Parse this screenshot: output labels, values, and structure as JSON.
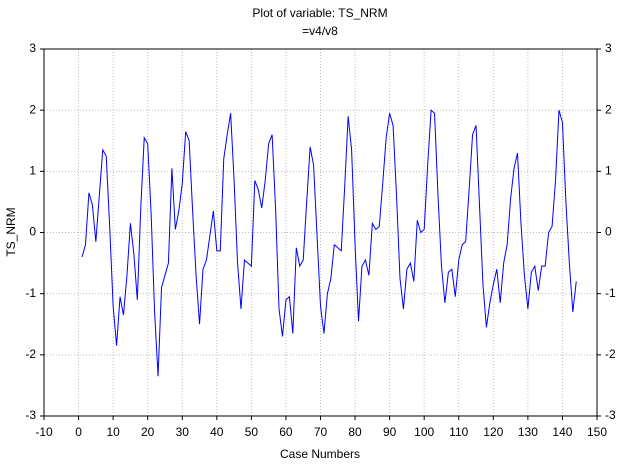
{
  "chart_data": {
    "type": "line",
    "title": "Plot of variable: TS_NRM",
    "subtitle": "=v4/v8",
    "x_label": "Case Numbers",
    "y_label": "TS_NRM",
    "color": "#0000ff",
    "grid": true,
    "xlim": [
      -10,
      150
    ],
    "xticks": [
      -10,
      0,
      10,
      20,
      30,
      40,
      50,
      60,
      70,
      80,
      90,
      100,
      110,
      120,
      130,
      140,
      150
    ],
    "ylim": [
      -3,
      3
    ],
    "yticks": [
      -3,
      -2,
      -1,
      0,
      1,
      2,
      3
    ],
    "x": [
      1,
      2,
      3,
      4,
      5,
      6,
      7,
      8,
      9,
      10,
      11,
      12,
      13,
      14,
      15,
      16,
      17,
      18,
      19,
      20,
      21,
      22,
      23,
      24,
      25,
      26,
      27,
      28,
      29,
      30,
      31,
      32,
      33,
      34,
      35,
      36,
      37,
      38,
      39,
      40,
      41,
      42,
      43,
      44,
      45,
      46,
      47,
      48,
      49,
      50,
      51,
      52,
      53,
      54,
      55,
      56,
      57,
      58,
      59,
      60,
      61,
      62,
      63,
      64,
      65,
      66,
      67,
      68,
      69,
      70,
      71,
      72,
      73,
      74,
      75,
      76,
      77,
      78,
      79,
      80,
      81,
      82,
      83,
      84,
      85,
      86,
      87,
      88,
      89,
      90,
      91,
      92,
      93,
      94,
      95,
      96,
      97,
      98,
      99,
      100,
      101,
      102,
      103,
      104,
      105,
      106,
      107,
      108,
      109,
      110,
      111,
      112,
      113,
      114,
      115,
      116,
      117,
      118,
      119,
      120,
      121,
      122,
      123,
      124,
      125,
      126,
      127,
      128,
      129,
      130,
      131,
      132,
      133,
      134,
      135,
      136,
      137,
      138,
      139,
      140,
      141,
      142,
      143,
      144
    ],
    "values": [
      -0.4,
      -0.2,
      0.65,
      0.45,
      -0.15,
      0.6,
      1.35,
      1.25,
      0.1,
      -1.2,
      -1.85,
      -1.05,
      -1.35,
      -0.7,
      0.15,
      -0.35,
      -1.1,
      0.4,
      1.55,
      1.45,
      0.3,
      -1.3,
      -2.35,
      -0.9,
      -0.7,
      -0.5,
      1.05,
      0.05,
      0.35,
      0.8,
      1.65,
      1.5,
      0.35,
      -0.7,
      -1.5,
      -0.6,
      -0.45,
      -0.05,
      0.35,
      -0.3,
      -0.3,
      1.2,
      1.6,
      1.95,
      0.85,
      -0.5,
      -1.25,
      -0.45,
      -0.5,
      -0.55,
      0.85,
      0.7,
      0.4,
      0.85,
      1.45,
      1.6,
      0.4,
      -1.25,
      -1.7,
      -1.1,
      -1.05,
      -1.65,
      -0.25,
      -0.55,
      -0.45,
      0.5,
      1.4,
      1.1,
      -0.05,
      -1.2,
      -1.65,
      -1.0,
      -0.75,
      -0.2,
      -0.25,
      -0.3,
      0.75,
      1.9,
      1.35,
      -0.2,
      -1.45,
      -0.55,
      -0.45,
      -0.7,
      0.15,
      0.05,
      0.1,
      0.8,
      1.55,
      1.95,
      1.75,
      0.6,
      -0.75,
      -1.25,
      -0.6,
      -0.5,
      -0.8,
      0.2,
      0.0,
      0.05,
      1.1,
      2.0,
      1.95,
      0.6,
      -0.55,
      -1.15,
      -0.65,
      -0.6,
      -1.05,
      -0.45,
      -0.2,
      -0.15,
      0.7,
      1.6,
      1.75,
      0.45,
      -0.85,
      -1.55,
      -1.15,
      -0.85,
      -0.6,
      -1.15,
      -0.5,
      -0.2,
      0.55,
      1.05,
      1.3,
      0.15,
      -0.7,
      -1.25,
      -0.65,
      -0.55,
      -0.95,
      -0.55,
      -0.55,
      0.0,
      0.1,
      0.85,
      2.0,
      1.8,
      0.5,
      -0.5,
      -1.3,
      -0.8
    ]
  }
}
